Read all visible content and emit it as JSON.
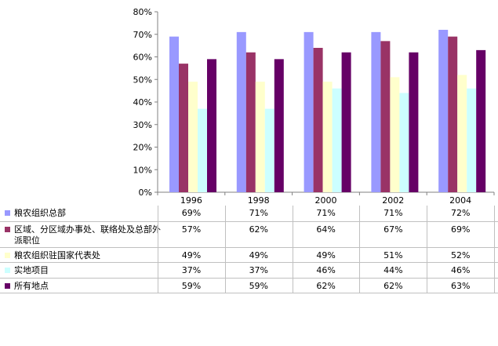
{
  "chart_data": {
    "type": "bar",
    "categories": [
      "1996",
      "1998",
      "2000",
      "2002",
      "2004"
    ],
    "y_ticks": [
      "0%",
      "10%",
      "20%",
      "30%",
      "40%",
      "50%",
      "60%",
      "70%",
      "80%"
    ],
    "ylim": [
      0,
      80
    ],
    "grid": false,
    "legend_placement": "bottom data table",
    "series": [
      {
        "name": "粮农组织总部",
        "color": "#9999ff",
        "values": [
          69,
          71,
          71,
          71,
          72
        ],
        "labels": [
          "69%",
          "71%",
          "71%",
          "71%",
          "72%"
        ]
      },
      {
        "name": "区域、分区域办事处、联络处及总部外派职位",
        "color": "#993366",
        "values": [
          57,
          62,
          64,
          67,
          69
        ],
        "labels": [
          "57%",
          "62%",
          "64%",
          "67%",
          "69%"
        ]
      },
      {
        "name": "粮农组织驻国家代表处",
        "color": "#ffffcc",
        "values": [
          49,
          49,
          49,
          51,
          52
        ],
        "labels": [
          "49%",
          "49%",
          "49%",
          "51%",
          "52%"
        ]
      },
      {
        "name": "实地项目",
        "color": "#ccffff",
        "values": [
          37,
          37,
          46,
          44,
          46
        ],
        "labels": [
          "37%",
          "37%",
          "46%",
          "44%",
          "46%"
        ]
      },
      {
        "name": "所有地点",
        "color": "#660066",
        "values": [
          59,
          59,
          62,
          62,
          63
        ],
        "labels": [
          "59%",
          "59%",
          "62%",
          "62%",
          "63%"
        ]
      }
    ]
  }
}
